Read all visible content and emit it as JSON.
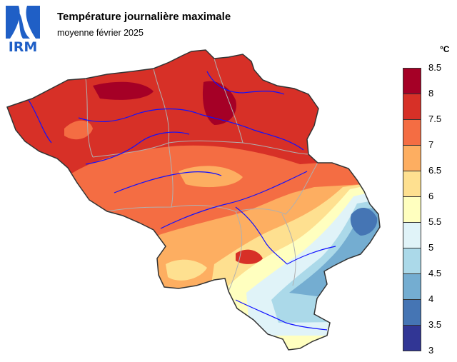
{
  "logo": {
    "text": "IRM",
    "brand_color": "#1f5fc6"
  },
  "title": "Température journalière maximale",
  "subtitle": "moyenne février 2025",
  "legend": {
    "unit": "°C",
    "ticks": [
      "8.5",
      "8",
      "7.5",
      "7",
      "6.5",
      "6",
      "5.5",
      "5",
      "4.5",
      "4",
      "3.5",
      "3"
    ],
    "classes": [
      {
        "from": 8,
        "to": 8.5,
        "color": "#a50026"
      },
      {
        "from": 7.5,
        "to": 8,
        "color": "#d73027"
      },
      {
        "from": 7,
        "to": 7.5,
        "color": "#f46d43"
      },
      {
        "from": 6.5,
        "to": 7,
        "color": "#fdae61"
      },
      {
        "from": 6,
        "to": 6.5,
        "color": "#fee090"
      },
      {
        "from": 5.5,
        "to": 6,
        "color": "#ffffbf"
      },
      {
        "from": 5,
        "to": 5.5,
        "color": "#e0f3f8"
      },
      {
        "from": 4.5,
        "to": 5,
        "color": "#abd9e9"
      },
      {
        "from": 4,
        "to": 4.5,
        "color": "#74add1"
      },
      {
        "from": 3.5,
        "to": 4,
        "color": "#4575b4"
      },
      {
        "from": 3,
        "to": 3.5,
        "color": "#313695"
      }
    ]
  },
  "map": {
    "region": "Belgique",
    "river_color": "#1010ff",
    "boundary_color": "#b0b0b0"
  }
}
